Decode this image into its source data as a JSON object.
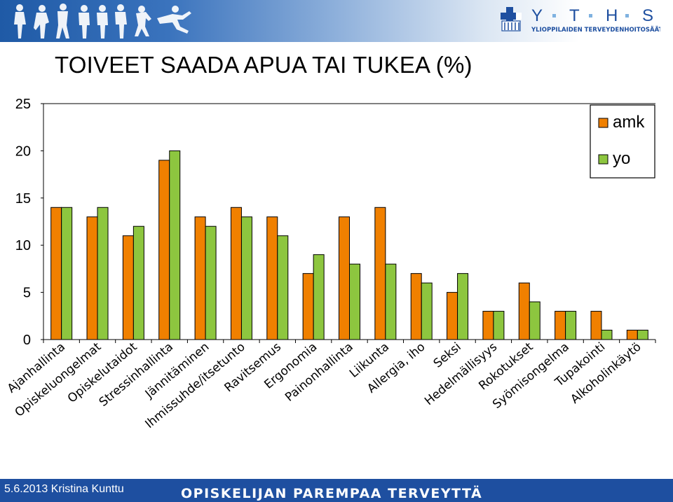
{
  "header": {
    "logo_letters": [
      "Y",
      "T",
      "H",
      "S"
    ],
    "logo_subtitle": "YLIOPPILAIDEN TERVEYDENHOITOSÄÄTIÖ"
  },
  "title": "TOIVEET SAADA APUA TAI TUKEA (%)",
  "footer": {
    "date_author": "5.6.2013 Kristina Kunttu",
    "slogan": "OPISKELIJAN PAREMPAA TERVEYTTÄ"
  },
  "colors": {
    "amk": "#f08000",
    "yo": "#8dc63f",
    "header_blue": "#1f5aa6",
    "footer_blue": "#1e4fa0"
  },
  "icons": [
    "people-figures-icon",
    "yths-cross-logo-icon"
  ],
  "chart_data": {
    "type": "bar",
    "title": "TOIVEET SAADA APUA TAI TUKEA (%)",
    "categories": [
      "Ajanhallinta",
      "Opiskeluongelmat",
      "Opiskelutaidot",
      "Stressinhallinta",
      "Jännitäminen",
      "Ihmissuhde/itsetunto",
      "Ravitsemus",
      "Ergonomia",
      "Painonhallinta",
      "Liikunta",
      "Allergia, iho",
      "Seksi",
      "Hedelmällisyys",
      "Rokotukset",
      "Syömisongelma",
      "Tupakointi",
      "Alkoholinkäytö"
    ],
    "series": [
      {
        "name": "amk",
        "values": [
          14,
          13,
          11,
          19,
          13,
          14,
          13,
          7,
          13,
          14,
          7,
          5,
          3,
          6,
          3,
          3,
          1
        ]
      },
      {
        "name": "yo",
        "values": [
          14,
          14,
          12,
          20,
          12,
          13,
          11,
          9,
          8,
          8,
          6,
          7,
          3,
          4,
          3,
          1,
          1
        ]
      }
    ],
    "yticks": [
      "0",
      "5",
      "10",
      "15",
      "20",
      "25"
    ],
    "ylim": [
      0,
      25
    ],
    "xlabel": "",
    "ylabel": "",
    "grid": false,
    "legend": "top-right"
  }
}
